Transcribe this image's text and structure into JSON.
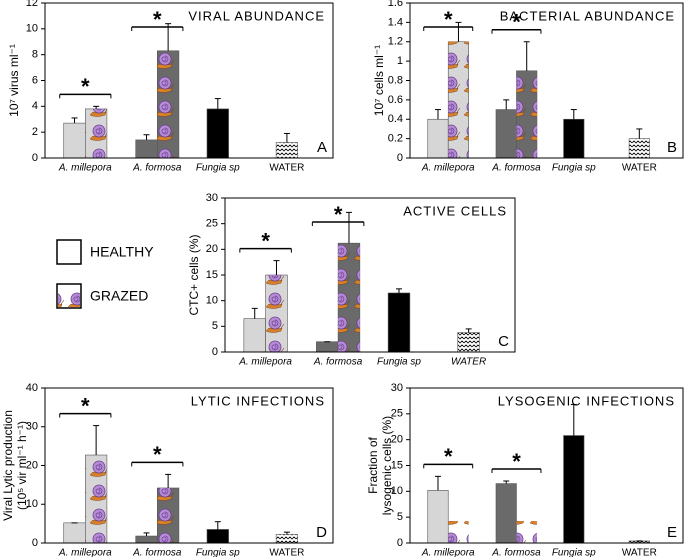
{
  "chart_data": [
    {
      "type": "bar",
      "title": "VIRAL ABUNDANCE",
      "panel_label": "A",
      "ylabel": "10⁷ virus ml⁻¹",
      "categories": [
        "A. millepora",
        "A. formosa",
        "Fungia sp",
        "WATER"
      ],
      "category_fills": [
        "#d6d6d6",
        "#6a6a6a",
        "#000000",
        "waves"
      ],
      "series": [
        {
          "name": "HEALTHY",
          "values": [
            2.7,
            1.4,
            3.8,
            1.2
          ],
          "errors": [
            0.4,
            0.4,
            0.8,
            0.7
          ]
        },
        {
          "name": "GRAZED",
          "pattern": "snails",
          "values": [
            3.8,
            8.3,
            null,
            null
          ],
          "errors": [
            0.2,
            2.1,
            null,
            null
          ]
        }
      ],
      "significant": [
        true,
        true,
        false,
        false
      ],
      "significance_label": "*",
      "ylim": [
        0,
        12
      ],
      "yticks": [
        0,
        2,
        4,
        6,
        8,
        10,
        12
      ]
    },
    {
      "type": "bar",
      "title": "BACTERIAL ABUNDANCE",
      "panel_label": "B",
      "ylabel": "10⁷ cells ml⁻¹",
      "categories": [
        "A. millepora",
        "A. formosa",
        "Fungia sp",
        "WATER"
      ],
      "category_fills": [
        "#d6d6d6",
        "#6a6a6a",
        "#000000",
        "waves"
      ],
      "series": [
        {
          "name": "HEALTHY",
          "values": [
            0.4,
            0.5,
            0.4,
            0.2
          ],
          "errors": [
            0.1,
            0.1,
            0.1,
            0.1
          ]
        },
        {
          "name": "GRAZED",
          "pattern": "snails",
          "values": [
            1.2,
            0.9,
            null,
            null
          ],
          "errors": [
            0.2,
            0.3,
            null,
            null
          ]
        }
      ],
      "significant": [
        true,
        true,
        false,
        false
      ],
      "significance_label": "*",
      "ylim": [
        0,
        1.6
      ],
      "yticks": [
        0,
        0.2,
        0.4,
        0.6,
        0.8,
        1,
        1.2,
        1.4,
        1.6
      ]
    },
    {
      "type": "bar",
      "title": "ACTIVE CELLS",
      "panel_label": "C",
      "ylabel": "CTC+ cells (%)",
      "categories": [
        "A. millepora",
        "A. formosa",
        "Fungia sp",
        "WATER"
      ],
      "category_fills": [
        "#d6d6d6",
        "#6a6a6a",
        "#000000",
        "waves"
      ],
      "series": [
        {
          "name": "HEALTHY",
          "values": [
            6.5,
            2,
            11.5,
            3.8
          ],
          "errors": [
            2,
            0,
            0.8,
            0.7
          ]
        },
        {
          "name": "GRAZED",
          "pattern": "snails",
          "values": [
            15,
            21.2,
            null,
            null
          ],
          "errors": [
            2.8,
            6,
            null,
            null
          ]
        }
      ],
      "significant": [
        true,
        true,
        false,
        false
      ],
      "significance_label": "*",
      "ylim": [
        0,
        30
      ],
      "yticks": [
        0,
        5,
        10,
        15,
        20,
        25,
        30
      ]
    },
    {
      "type": "bar",
      "title": "LYTIC INFECTIONS",
      "panel_label": "D",
      "ylabel": [
        "Viral Lytic production",
        "(10⁵ vir ml⁻¹ h⁻¹)"
      ],
      "categories": [
        "A. millepora",
        "A. formosa",
        "Fungia sp",
        "WATER"
      ],
      "category_fills": [
        "#d6d6d6",
        "#6a6a6a",
        "#000000",
        "waves"
      ],
      "series": [
        {
          "name": "HEALTHY",
          "values": [
            5.2,
            1.8,
            3.5,
            2.2
          ],
          "errors": [
            0,
            0.8,
            2,
            0.6
          ]
        },
        {
          "name": "GRAZED",
          "pattern": "snails",
          "values": [
            22.7,
            14.2,
            null,
            null
          ],
          "errors": [
            7.6,
            3.5,
            null,
            null
          ]
        }
      ],
      "significant": [
        true,
        true,
        false,
        false
      ],
      "significance_label": "*",
      "ylim": [
        0,
        40
      ],
      "yticks": [
        0,
        10,
        20,
        30,
        40
      ]
    },
    {
      "type": "bar",
      "title": "LYSOGENIC INFECTIONS",
      "panel_label": "E",
      "ylabel": [
        "Fraction of",
        "lysogenic cells (%)"
      ],
      "categories": [
        "A. millepora",
        "A. formosa",
        "Fungia sp",
        "WATER"
      ],
      "category_fills": [
        "#d6d6d6",
        "#6a6a6a",
        "#000000",
        "waves"
      ],
      "series": [
        {
          "name": "HEALTHY",
          "values": [
            10.2,
            11.5,
            20.8,
            0.4
          ],
          "errors": [
            2.7,
            0.5,
            6,
            0
          ]
        },
        {
          "name": "GRAZED",
          "pattern": "snails",
          "values": [
            0,
            0,
            null,
            null
          ],
          "errors": [
            0,
            0,
            null,
            null
          ]
        }
      ],
      "significant": [
        true,
        true,
        false,
        false
      ],
      "significance_label": "*",
      "ylim": [
        0,
        30
      ],
      "yticks": [
        0,
        5,
        10,
        15,
        20,
        25,
        30
      ]
    }
  ]
}
